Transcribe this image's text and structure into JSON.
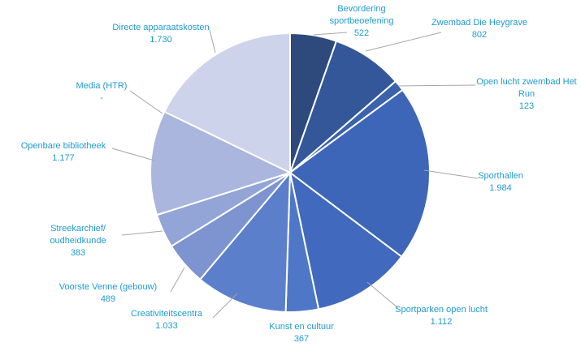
{
  "chart_data": {
    "type": "pie",
    "title": "",
    "label_color": "#1F9BCF",
    "leader_color": "#a6a6a6",
    "slice_border": "#ffffff",
    "slices": [
      {
        "label": [
          "Bevordering",
          "sportbeoefening"
        ],
        "value_text": "522",
        "value": 522,
        "color": "#2E4A7D"
      },
      {
        "label": [
          "Zwembad Die Heygrave"
        ],
        "value_text": "802",
        "value": 802,
        "color": "#34579A"
      },
      {
        "label": [
          "Open lucht zwembad Het",
          "Run"
        ],
        "value_text": "123",
        "value": 123,
        "color": "#3A62AD"
      },
      {
        "label": [
          "Sporthallen"
        ],
        "value_text": "1.984",
        "value": 1984,
        "color": "#3D66B8"
      },
      {
        "label": [
          "Sportparken open lucht"
        ],
        "value_text": "1.112",
        "value": 1112,
        "color": "#4169BE"
      },
      {
        "label": [
          "Kunst en cultuur"
        ],
        "value_text": "367",
        "value": 367,
        "color": "#4E77C8"
      },
      {
        "label": [
          "Creativiteitscentra"
        ],
        "value_text": "1.033",
        "value": 1033,
        "color": "#5B7FCB"
      },
      {
        "label": [
          "Voorste Venne (gebouw)"
        ],
        "value_text": "489",
        "value": 489,
        "color": "#7E94D0"
      },
      {
        "label": [
          "Streekarchief/",
          "oudheidkunde"
        ],
        "value_text": "383",
        "value": 383,
        "color": "#93A5D6"
      },
      {
        "label": [
          "Openbare bibliotheek"
        ],
        "value_text": "1.177",
        "value": 1177,
        "color": "#AAB6DD"
      },
      {
        "label": [
          "Media (HTR)"
        ],
        "value_text": "-",
        "value": 0,
        "color": "#BFC8E4"
      },
      {
        "label": [
          "Directe apparaatskosten"
        ],
        "value_text": "1.730",
        "value": 1730,
        "color": "#CDD3EA"
      }
    ]
  }
}
